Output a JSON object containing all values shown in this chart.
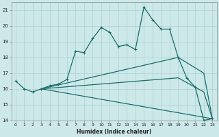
{
  "xlabel": "Humidex (Indice chaleur)",
  "background_color": "#cce8e8",
  "grid_color": "#b0d4d4",
  "line_color": "#1a6b6b",
  "xlim": [
    -0.5,
    23.5
  ],
  "ylim": [
    14,
    21.5
  ],
  "yticks": [
    14,
    15,
    16,
    17,
    18,
    19,
    20,
    21
  ],
  "xticks": [
    0,
    1,
    2,
    3,
    4,
    5,
    6,
    7,
    8,
    9,
    10,
    11,
    12,
    13,
    14,
    15,
    16,
    17,
    18,
    19,
    20,
    21,
    22,
    23
  ],
  "lines": [
    {
      "x": [
        0,
        1,
        2,
        3,
        4,
        5,
        6,
        7,
        8,
        9,
        10,
        11,
        12,
        13,
        14,
        15,
        16,
        17,
        18,
        19,
        20,
        21,
        22,
        23
      ],
      "y": [
        16.5,
        16.0,
        15.8,
        16.0,
        16.2,
        16.3,
        16.6,
        18.4,
        18.3,
        19.2,
        19.9,
        19.6,
        18.7,
        18.8,
        18.5,
        21.2,
        20.4,
        19.8,
        19.8,
        18.0,
        16.7,
        16.1,
        14.0,
        14.1
      ],
      "marker": true
    },
    {
      "x": [
        3,
        19,
        22,
        23
      ],
      "y": [
        16.0,
        18.0,
        17.0,
        14.1
      ],
      "marker": false
    },
    {
      "x": [
        3,
        19,
        22,
        23
      ],
      "y": [
        16.0,
        16.7,
        15.8,
        14.1
      ],
      "marker": false
    },
    {
      "x": [
        3,
        23
      ],
      "y": [
        16.0,
        14.1
      ],
      "marker": false
    }
  ]
}
